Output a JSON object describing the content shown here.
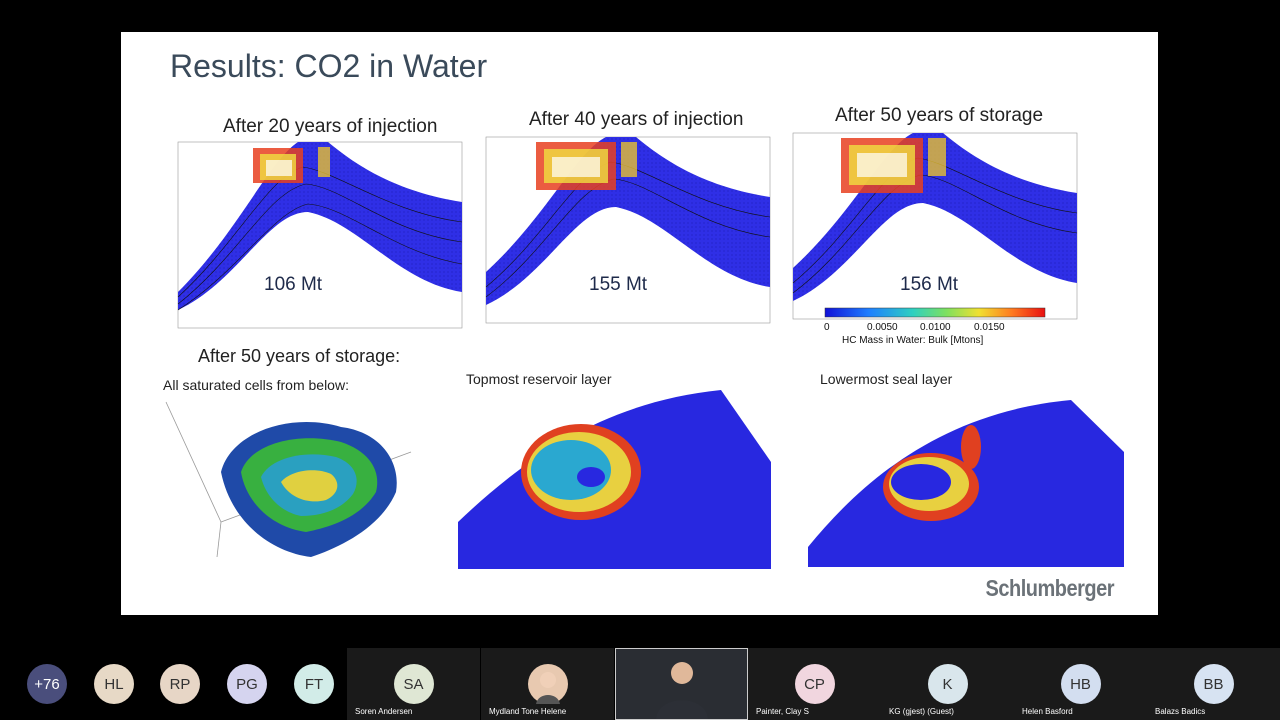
{
  "slide": {
    "title": "Results: CO2 in Water",
    "panels": [
      {
        "subtitle": "After 20 years of injection",
        "mass": "106 Mt"
      },
      {
        "subtitle": "After 40 years of injection",
        "mass": "155 Mt"
      },
      {
        "subtitle": "After 50 years of storage",
        "mass": "156 Mt"
      }
    ],
    "bottom_title": "After 50 years of storage:",
    "views": [
      {
        "label": "All saturated cells from below:"
      },
      {
        "label": "Topmost reservoir layer"
      },
      {
        "label": "Lowermost seal layer"
      }
    ],
    "colorbar": {
      "ticks": [
        "0",
        "0.0050",
        "0.0100",
        "0.0150"
      ],
      "caption": "HC Mass in Water: Bulk [Mtons]"
    },
    "logo": "Schlumberger"
  },
  "participants": {
    "overflow": {
      "label": "+76",
      "color": "#4a4e7c"
    },
    "avatars": [
      {
        "initials": "HL",
        "color": "#e7d9c6"
      },
      {
        "initials": "RP",
        "color": "#e7d6c6"
      },
      {
        "initials": "PG",
        "color": "#d5d4ef"
      },
      {
        "initials": "FT",
        "color": "#d2ece8"
      }
    ],
    "tiles": [
      {
        "initials": "SA",
        "name": "Soren Andersen",
        "color": "#dfe7d4"
      },
      {
        "initials": "",
        "name": "Mydland Tone Helene",
        "color": "#e8c9b0"
      },
      {
        "initials": "",
        "name": "",
        "color": "#7a7f86"
      },
      {
        "initials": "CP",
        "name": "Painter, Clay S",
        "color": "#f1d6df"
      },
      {
        "initials": "K",
        "name": "KG (gjest) (Guest)",
        "color": "#d9e6ec"
      },
      {
        "initials": "HB",
        "name": "Helen Basford",
        "color": "#d3def0"
      },
      {
        "initials": "BB",
        "name": "Balazs Badics",
        "color": "#d7e3f2"
      }
    ]
  }
}
